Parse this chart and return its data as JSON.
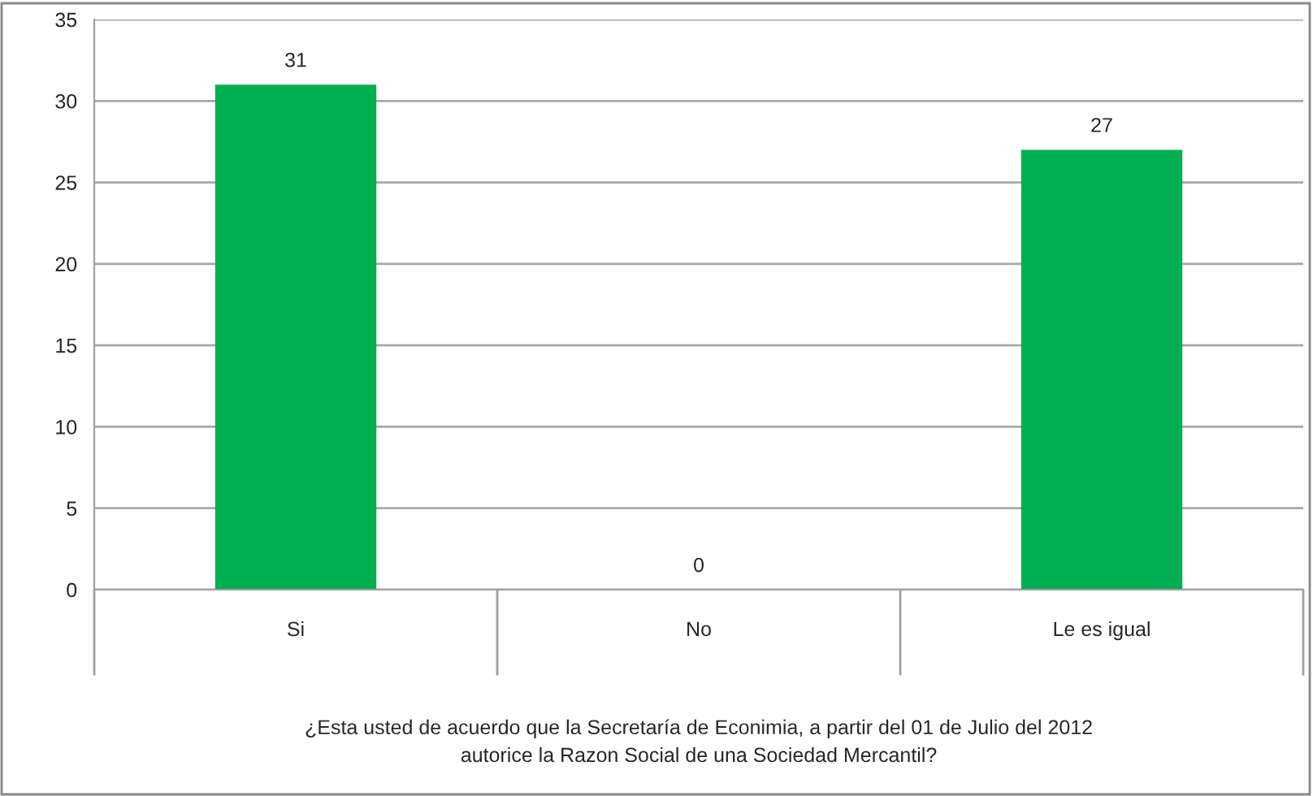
{
  "chart_data": {
    "type": "bar",
    "categories": [
      "Si",
      "No",
      "Le es igual"
    ],
    "values": [
      31,
      0,
      27
    ],
    "color": "#00b050",
    "xlabel": "¿Esta usted de acuerdo que la Secretaría de Econimia, a partir del 01 de Julio del 2012\nautorice la Razon Social de una Sociedad Mercantil?",
    "ylim": [
      0,
      35
    ],
    "yticks": [
      0,
      5,
      10,
      15,
      20,
      25,
      30,
      35
    ],
    "grid": "y",
    "data_labels": true,
    "legend": false
  }
}
